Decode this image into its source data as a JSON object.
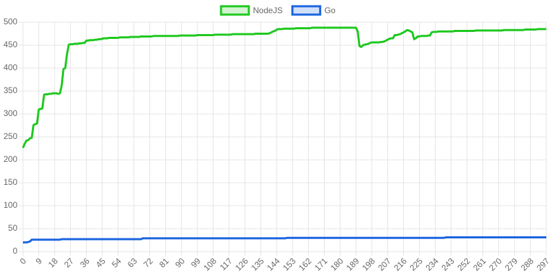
{
  "chart_data": {
    "type": "line",
    "x": [
      0,
      1,
      2,
      3,
      4,
      5,
      6,
      7,
      8,
      9,
      10,
      11,
      12,
      13,
      14,
      15,
      16,
      17,
      18,
      19,
      20,
      21,
      22,
      23,
      24,
      25,
      26,
      27,
      28,
      29,
      30,
      31,
      32,
      33,
      34,
      35,
      36,
      37,
      38,
      39,
      40,
      41,
      42,
      43,
      44,
      45,
      46,
      47,
      48,
      49,
      50,
      51,
      52,
      53,
      54,
      55,
      56,
      57,
      58,
      59,
      60,
      61,
      62,
      63,
      64,
      65,
      66,
      67,
      68,
      69,
      70,
      71,
      72,
      73,
      74,
      75,
      76,
      77,
      78,
      79,
      80,
      81,
      82,
      83,
      84,
      85,
      86,
      87,
      88,
      89,
      90,
      91,
      92,
      93,
      94,
      95,
      96,
      97,
      98,
      99,
      100,
      101,
      102,
      103,
      104,
      105,
      106,
      107,
      108,
      109,
      110,
      111,
      112,
      113,
      114,
      115,
      116,
      117,
      118,
      119,
      120,
      121,
      122,
      123,
      124,
      125,
      126,
      127,
      128,
      129,
      130,
      131,
      132,
      133,
      134,
      135,
      136,
      137,
      138,
      139,
      140,
      141,
      142,
      143,
      144,
      145,
      146,
      147,
      148,
      149,
      150,
      151,
      152,
      153,
      154,
      155,
      156,
      157,
      158,
      159,
      160,
      161,
      162,
      163,
      164,
      165,
      166,
      167,
      168,
      169,
      170,
      171,
      172,
      173,
      174,
      175,
      176,
      177,
      178,
      179,
      180,
      181,
      182,
      183,
      184,
      185,
      186,
      187,
      188,
      189,
      190,
      191,
      192,
      193,
      194,
      195,
      196,
      197,
      198,
      199,
      200,
      201,
      202,
      203,
      204,
      205,
      206,
      207,
      208,
      209,
      210,
      211,
      212,
      213,
      214,
      215,
      216,
      217,
      218,
      219,
      220,
      221,
      222,
      223,
      224,
      225,
      226,
      227,
      228,
      229,
      230,
      231,
      232,
      233,
      234,
      235,
      236,
      237,
      238,
      239,
      240,
      241,
      242,
      243,
      244,
      245,
      246,
      247,
      248,
      249,
      250,
      251,
      252,
      253,
      254,
      255,
      256,
      257,
      258,
      259,
      260,
      261,
      262,
      263,
      264,
      265,
      266,
      267,
      268,
      269,
      270,
      271,
      272,
      273,
      274,
      275,
      276,
      277,
      278,
      279,
      280,
      281,
      282,
      283,
      284,
      285,
      286,
      287,
      288,
      289,
      290,
      291,
      292,
      293,
      294,
      295,
      296,
      297
    ],
    "series": [
      {
        "name": "NodeJS",
        "color": "#1ec81e",
        "values": [
          226,
          235,
          242,
          243,
          247,
          248,
          276,
          278,
          279,
          310,
          311,
          312,
          342,
          343,
          343,
          344,
          344,
          345,
          345,
          345,
          344,
          345,
          362,
          398,
          400,
          430,
          451,
          452,
          452,
          453,
          453,
          453,
          454,
          454,
          455,
          455,
          460,
          460,
          461,
          461,
          461,
          462,
          462,
          463,
          463,
          464,
          465,
          465,
          465,
          466,
          466,
          466,
          466,
          466,
          466,
          467,
          467,
          467,
          467,
          467,
          467,
          468,
          468,
          468,
          468,
          468,
          468,
          469,
          469,
          469,
          469,
          469,
          469,
          469,
          470,
          470,
          470,
          470,
          470,
          470,
          470,
          470,
          470,
          470,
          470,
          470,
          470,
          470,
          470,
          471,
          471,
          471,
          471,
          471,
          471,
          471,
          471,
          471,
          471,
          472,
          472,
          472,
          472,
          472,
          472,
          472,
          472,
          472,
          472,
          473,
          473,
          473,
          473,
          473,
          473,
          473,
          473,
          473,
          473,
          474,
          474,
          474,
          474,
          474,
          474,
          474,
          474,
          474,
          474,
          474,
          474,
          474,
          475,
          475,
          475,
          475,
          475,
          475,
          475,
          475,
          476,
          478,
          480,
          481,
          484,
          485,
          485,
          485,
          486,
          486,
          486,
          486,
          486,
          486,
          486,
          487,
          487,
          487,
          487,
          487,
          487,
          487,
          487,
          487,
          488,
          488,
          488,
          488,
          488,
          488,
          488,
          488,
          488,
          488,
          488,
          488,
          488,
          488,
          488,
          488,
          488,
          488,
          488,
          488,
          488,
          488,
          488,
          488,
          488,
          488,
          480,
          448,
          446,
          450,
          451,
          452,
          453,
          455,
          456,
          456,
          456,
          456,
          456,
          457,
          457,
          458,
          460,
          462,
          464,
          465,
          465,
          472,
          472,
          473,
          474,
          476,
          478,
          480,
          483,
          482,
          480,
          478,
          463,
          465,
          469,
          469,
          470,
          470,
          470,
          470,
          471,
          471,
          478,
          479,
          479,
          479,
          480,
          480,
          480,
          480,
          480,
          480,
          480,
          480,
          480,
          481,
          481,
          481,
          481,
          481,
          481,
          481,
          481,
          481,
          481,
          481,
          481,
          482,
          482,
          482,
          482,
          482,
          482,
          482,
          482,
          482,
          482,
          482,
          482,
          482,
          482,
          482,
          482,
          483,
          483,
          483,
          483,
          483,
          483,
          483,
          483,
          483,
          483,
          483,
          483,
          484,
          484,
          484,
          484,
          484,
          484,
          484,
          485,
          485,
          485,
          485,
          485,
          485
        ]
      },
      {
        "name": "Go",
        "color": "#1a64e0",
        "values": [
          20,
          20,
          20,
          21,
          22,
          26,
          26,
          26,
          26,
          26,
          26,
          26,
          26,
          26,
          26,
          26,
          26,
          26,
          26,
          26,
          26,
          26,
          27,
          27,
          27,
          27,
          27,
          27,
          27,
          27,
          27,
          27,
          27,
          27,
          27,
          27,
          27,
          27,
          27,
          27,
          27,
          27,
          27,
          27,
          27,
          27,
          27,
          27,
          27,
          27,
          27,
          27,
          27,
          27,
          27,
          27,
          27,
          27,
          27,
          27,
          27,
          27,
          27,
          27,
          27,
          27,
          27,
          27,
          29,
          29,
          29,
          29,
          29,
          29,
          29,
          29,
          29,
          29,
          29,
          29,
          29,
          29,
          29,
          29,
          29,
          29,
          29,
          29,
          29,
          29,
          29,
          29,
          29,
          29,
          29,
          29,
          29,
          29,
          29,
          29,
          29,
          29,
          29,
          29,
          29,
          29,
          29,
          29,
          29,
          29,
          29,
          29,
          29,
          29,
          29,
          29,
          29,
          29,
          29,
          29,
          29,
          29,
          29,
          29,
          29,
          29,
          29,
          29,
          29,
          29,
          29,
          29,
          29,
          29,
          29,
          29,
          29,
          29,
          29,
          29,
          29,
          29,
          29,
          29,
          29,
          29,
          29,
          29,
          29,
          29,
          30,
          30,
          30,
          30,
          30,
          30,
          30,
          30,
          30,
          30,
          30,
          30,
          30,
          30,
          30,
          30,
          30,
          30,
          30,
          30,
          30,
          30,
          30,
          30,
          30,
          30,
          30,
          30,
          30,
          30,
          30,
          30,
          30,
          30,
          30,
          30,
          30,
          30,
          30,
          30,
          30,
          30,
          30,
          30,
          30,
          30,
          30,
          30,
          30,
          30,
          30,
          30,
          30,
          30,
          30,
          30,
          30,
          30,
          30,
          30,
          30,
          30,
          30,
          30,
          30,
          30,
          30,
          30,
          30,
          30,
          30,
          30,
          30,
          30,
          30,
          30,
          30,
          30,
          30,
          30,
          30,
          30,
          30,
          30,
          30,
          30,
          30,
          30,
          30,
          30,
          31,
          31,
          31,
          31,
          31,
          31,
          31,
          31,
          31,
          31,
          31,
          31,
          31,
          31,
          31,
          31,
          31,
          31,
          31,
          31,
          31,
          31,
          31,
          31,
          31,
          31,
          31,
          31,
          31,
          31,
          31,
          31,
          31,
          31,
          31,
          31,
          31,
          31,
          31,
          31,
          31,
          31,
          31,
          31,
          31,
          31,
          31,
          31,
          31,
          31,
          31,
          31,
          31,
          31,
          31,
          31,
          31,
          31
        ]
      }
    ],
    "xlim": [
      0,
      297
    ],
    "xticks": [
      0,
      9,
      18,
      27,
      36,
      45,
      54,
      63,
      72,
      81,
      90,
      99,
      108,
      117,
      126,
      135,
      144,
      153,
      162,
      171,
      180,
      189,
      198,
      207,
      216,
      225,
      234,
      243,
      252,
      261,
      270,
      279,
      288,
      297
    ],
    "ylim": [
      0,
      500
    ],
    "yticks": [
      0,
      50,
      100,
      150,
      200,
      250,
      300,
      350,
      400,
      450,
      500
    ],
    "grid": true,
    "legend": "top"
  }
}
